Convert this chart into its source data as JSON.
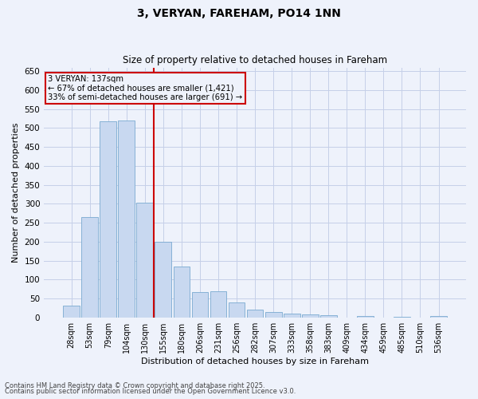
{
  "title": "3, VERYAN, FAREHAM, PO14 1NN",
  "subtitle": "Size of property relative to detached houses in Fareham",
  "xlabel": "Distribution of detached houses by size in Fareham",
  "ylabel": "Number of detached properties",
  "categories": [
    "28sqm",
    "53sqm",
    "79sqm",
    "104sqm",
    "130sqm",
    "155sqm",
    "180sqm",
    "206sqm",
    "231sqm",
    "256sqm",
    "282sqm",
    "307sqm",
    "333sqm",
    "358sqm",
    "383sqm",
    "409sqm",
    "434sqm",
    "459sqm",
    "485sqm",
    "510sqm",
    "536sqm"
  ],
  "values": [
    31,
    265,
    517,
    519,
    303,
    199,
    134,
    67,
    68,
    39,
    21,
    15,
    9,
    8,
    5,
    0,
    4,
    0,
    1,
    0,
    4
  ],
  "bar_color": "#c8d8f0",
  "bar_edge_color": "#7aaad0",
  "vline_x": 4.5,
  "vline_color": "#cc0000",
  "annotation_title": "3 VERYAN: 137sqm",
  "annotation_line1": "← 67% of detached houses are smaller (1,421)",
  "annotation_line2": "33% of semi-detached houses are larger (691) →",
  "annotation_box_color": "#cc0000",
  "ylim": [
    0,
    660
  ],
  "yticks": [
    0,
    50,
    100,
    150,
    200,
    250,
    300,
    350,
    400,
    450,
    500,
    550,
    600,
    650
  ],
  "footer1": "Contains HM Land Registry data © Crown copyright and database right 2025.",
  "footer2": "Contains public sector information licensed under the Open Government Licence v3.0.",
  "bg_color": "#eef2fb",
  "grid_color": "#c5cfe8"
}
